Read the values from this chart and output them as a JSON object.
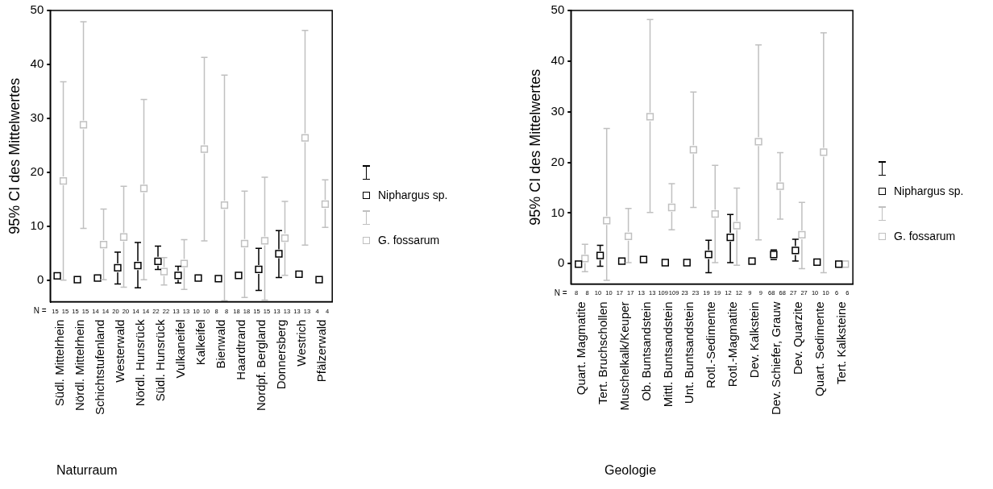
{
  "chart_data": [
    {
      "type": "scatter",
      "xlabel": "Naturraum",
      "ylabel": "95% CI des Mittelwertes",
      "marker": "square",
      "legend": "right",
      "grid": false,
      "categories": [
        "Südl. Mittelrhein",
        "Nördl. Mittelrhein",
        "Schichtstufenland",
        "Westerwald",
        "Nördl. Hunsrück",
        "Südl. Hunsrück",
        "Vulkaneifel",
        "Kalkeifel",
        "Bienwald",
        "Haardtrand",
        "Nordpf. Bergland",
        "Donnersberg",
        "Westrich",
        "Pfälzerwald"
      ],
      "ylim": [
        -4,
        50
      ],
      "yticks": [
        0,
        10,
        20,
        30,
        40,
        50
      ],
      "series": [
        {
          "name": "Niphargus sp.",
          "color": "#000000",
          "values": [
            0.8,
            0.1,
            0.4,
            2.3,
            2.7,
            3.5,
            0.9,
            0.4,
            0.3,
            0.9,
            2.0,
            4.9,
            1.1,
            0.1
          ],
          "errors": [
            null,
            null,
            null,
            [
              -0.7,
              5.2
            ],
            [
              -1.4,
              7.0
            ],
            [
              2.0,
              6.3
            ],
            [
              -0.5,
              2.6
            ],
            null,
            null,
            null,
            [
              -1.9,
              5.9
            ],
            [
              0.5,
              9.2
            ],
            null,
            null
          ]
        },
        {
          "name": "G. fossarum",
          "color": "#c0c0c0",
          "values": [
            18.4,
            28.8,
            6.6,
            8.0,
            17.0,
            1.6,
            3.1,
            24.3,
            13.9,
            6.8,
            7.3,
            7.8,
            26.4,
            14.1
          ],
          "errors": [
            [
              0.0,
              36.8
            ],
            [
              9.6,
              47.9
            ],
            [
              0.1,
              13.2
            ],
            [
              -1.3,
              17.4
            ],
            [
              0.1,
              33.5
            ],
            [
              -0.9,
              4.2
            ],
            [
              -1.7,
              7.5
            ],
            [
              7.3,
              41.3
            ],
            [
              -3.8,
              38.0
            ],
            [
              -3.2,
              16.5
            ],
            [
              -3.7,
              19.1
            ],
            [
              0.9,
              14.6
            ],
            [
              6.5,
              46.3
            ],
            [
              9.8,
              18.6
            ]
          ]
        }
      ],
      "annotations": [
        "N = ",
        "15",
        "15",
        "15",
        "15",
        "14",
        "14",
        "20",
        "20",
        "14",
        "14",
        "22",
        "22",
        "13",
        "13",
        "10",
        "10",
        "8",
        "8",
        "18",
        "18",
        "15",
        "15",
        "13",
        "13",
        "13",
        "13",
        "4",
        "4"
      ]
    },
    {
      "type": "scatter",
      "xlabel": "Geologie",
      "ylabel": "95% CI des Mittelwertes",
      "marker": "square",
      "legend": "right",
      "grid": false,
      "categories": [
        "Quart. Magmatite",
        "Tert. Bruchschollen",
        "Muschelkalk/Keuper",
        "Ob. Buntsandstein",
        "Mittl. Buntsandstein",
        "Unt. Buntsandstein",
        "Rotl.-Sedimente",
        "Rotl.-Magmatite",
        "Dev. Kalkstein",
        "Dev. Schiefer, Grauw",
        "Dev. Quarzite",
        "Quart. Sedimente",
        "Tert. Kalksteine"
      ],
      "ylim": [
        -4,
        50
      ],
      "yticks": [
        0,
        10,
        20,
        30,
        40,
        50
      ],
      "series": [
        {
          "name": "Niphargus sp.",
          "color": "#000000",
          "values": [
            -0.1,
            1.6,
            0.5,
            0.8,
            0.2,
            0.2,
            1.8,
            5.2,
            0.5,
            1.8,
            2.6,
            0.3,
            -0.1
          ],
          "errors": [
            null,
            [
              -0.5,
              3.6
            ],
            null,
            null,
            null,
            null,
            [
              -1.8,
              4.6
            ],
            [
              0.2,
              9.7
            ],
            null,
            [
              0.8,
              2.7
            ],
            [
              0.5,
              4.8
            ],
            null,
            null
          ]
        },
        {
          "name": "G. fossarum",
          "color": "#c0c0c0",
          "values": [
            1.0,
            8.5,
            5.4,
            29.0,
            11.1,
            22.5,
            9.8,
            7.5,
            24.1,
            15.3,
            5.7,
            22.0,
            -0.1
          ],
          "errors": [
            [
              -1.6,
              3.8
            ],
            [
              -3.3,
              26.7
            ],
            [
              0.2,
              10.9
            ],
            [
              10.1,
              48.2
            ],
            [
              6.7,
              15.8
            ],
            [
              11.1,
              33.9
            ],
            [
              0.2,
              19.4
            ],
            [
              -0.3,
              14.9
            ],
            [
              4.7,
              43.2
            ],
            [
              8.8,
              21.9
            ],
            [
              -1.0,
              12.1
            ],
            [
              -1.8,
              45.6
            ],
            null
          ]
        }
      ],
      "annotations": [
        "N = ",
        "8",
        "8",
        "10",
        "10",
        "17",
        "17",
        "13",
        "13",
        "109",
        "109",
        "23",
        "23",
        "19",
        "19",
        "12",
        "12",
        "9",
        "9",
        "68",
        "68",
        "27",
        "27",
        "10",
        "10",
        "6",
        "6"
      ]
    }
  ]
}
